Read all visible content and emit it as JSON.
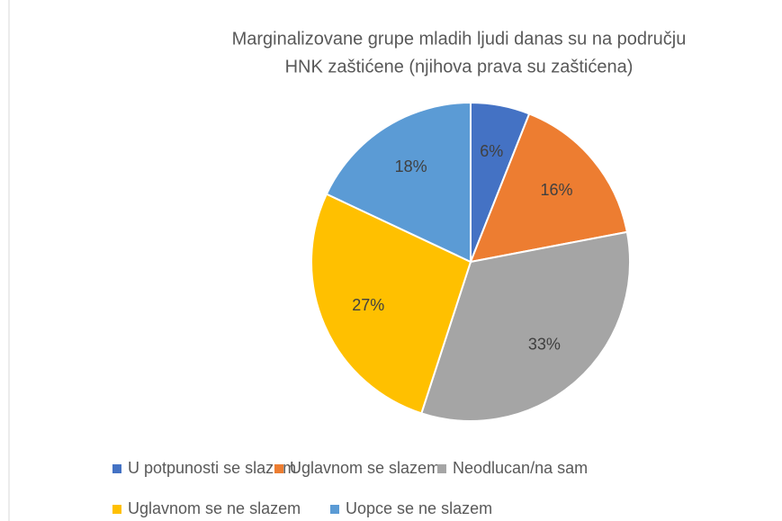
{
  "chart_data": {
    "type": "pie",
    "title": [
      "Marginalizovane grupe mladih ljudi danas su na području",
      "HNK zaštićene (njihova prava su zaštićena)"
    ],
    "categories": [
      "U potpunosti se slazem",
      "Uglavnom se slazem",
      "Neodlucan/na sam",
      "Uglavnom se ne slazem",
      "Uopce se ne slazem"
    ],
    "values": [
      6,
      16,
      33,
      27,
      18
    ],
    "value_labels": [
      "6%",
      "16%",
      "33%",
      "27%",
      "18%"
    ],
    "colors": [
      "#4472c4",
      "#ed7d31",
      "#a5a5a5",
      "#ffc000",
      "#5b9bd5"
    ]
  }
}
